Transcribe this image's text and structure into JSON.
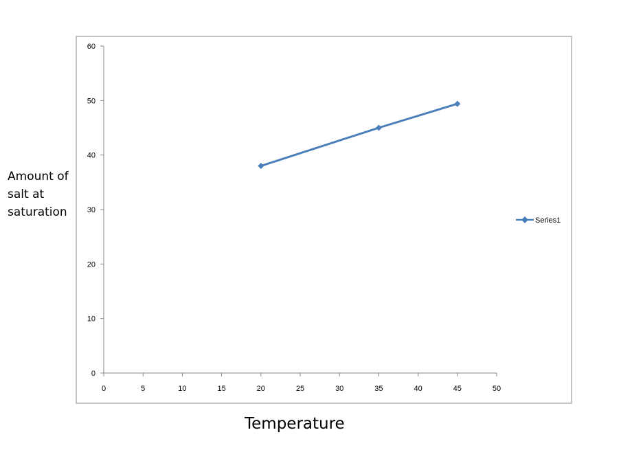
{
  "chart_data": {
    "type": "line",
    "title": "",
    "xlabel_lines": [
      "Temperature"
    ],
    "ylabel_lines": [
      "Amount of",
      "salt at",
      "saturation"
    ],
    "xlim": [
      0,
      50
    ],
    "ylim": [
      0,
      60
    ],
    "x_ticks": [
      0,
      5,
      10,
      15,
      20,
      25,
      30,
      35,
      40,
      45,
      50
    ],
    "y_ticks": [
      0,
      10,
      20,
      30,
      40,
      50,
      60
    ],
    "grid": false,
    "legend_position": "right",
    "series": [
      {
        "name": "Series1",
        "color": "#4a7ebb",
        "marker": "diamond",
        "points": [
          {
            "x": 20,
            "y": 38
          },
          {
            "x": 35,
            "y": 45
          },
          {
            "x": 45,
            "y": 49.4
          }
        ]
      }
    ]
  }
}
